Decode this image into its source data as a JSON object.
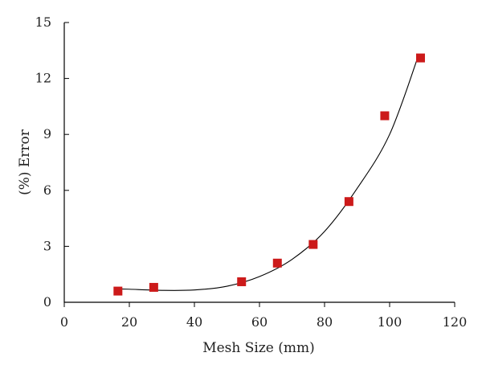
{
  "chart_data": {
    "type": "scatter",
    "xlabel": "Mesh Size (mm)",
    "ylabel": "(%) Error",
    "xlim": [
      0,
      120
    ],
    "ylim": [
      0,
      15
    ],
    "xticks": [
      0,
      20,
      40,
      60,
      80,
      100,
      120
    ],
    "yticks": [
      0,
      3,
      6,
      9,
      12,
      15
    ],
    "xtick_labels": [
      "0",
      "20",
      "40",
      "60",
      "80",
      "100",
      "120"
    ],
    "ytick_labels": [
      "0",
      "3",
      "6",
      "9",
      "12",
      "15"
    ],
    "grid": false,
    "series": [
      {
        "marker": "square",
        "color": "#cc1a1a",
        "x": [
          16.5,
          27.5,
          54.5,
          65.5,
          76.5,
          87.5,
          98.5,
          109.5
        ],
        "y": [
          0.6,
          0.8,
          1.1,
          2.1,
          3.1,
          5.4,
          10.0,
          13.1
        ]
      }
    ],
    "trendline": {
      "color": "#000000",
      "points": [
        [
          16,
          0.72
        ],
        [
          20,
          0.7
        ],
        [
          30,
          0.64
        ],
        [
          40,
          0.66
        ],
        [
          50,
          0.86
        ],
        [
          60,
          1.38
        ],
        [
          70,
          2.3
        ],
        [
          80,
          3.8
        ],
        [
          90,
          6.1
        ],
        [
          100,
          9.0
        ],
        [
          109,
          13.3
        ]
      ]
    }
  }
}
